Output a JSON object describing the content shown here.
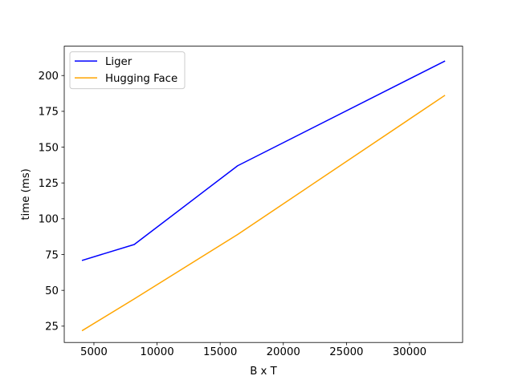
{
  "chart_data": {
    "type": "line",
    "title": "",
    "xlabel": "B x T",
    "ylabel": "time (ms)",
    "xlim": [
      2650,
      34200
    ],
    "ylim": [
      13.6,
      220.5
    ],
    "xticks": [
      5000,
      10000,
      15000,
      20000,
      25000,
      30000
    ],
    "xtick_labels": [
      "5000",
      "10000",
      "15000",
      "20000",
      "25000",
      "30000"
    ],
    "yticks": [
      25,
      50,
      75,
      100,
      125,
      150,
      175,
      200
    ],
    "ytick_labels": [
      "25",
      "50",
      "75",
      "100",
      "125",
      "150",
      "175",
      "200"
    ],
    "grid": false,
    "legend_position": "upper-left",
    "x": [
      4096,
      8192,
      16384,
      32768
    ],
    "series": [
      {
        "name": "Liger",
        "color": "#0000ff",
        "values": [
          71,
          82,
          137,
          210
        ]
      },
      {
        "name": "Hugging Face",
        "color": "#ffa500",
        "values": [
          22,
          44,
          89,
          186
        ]
      }
    ]
  }
}
